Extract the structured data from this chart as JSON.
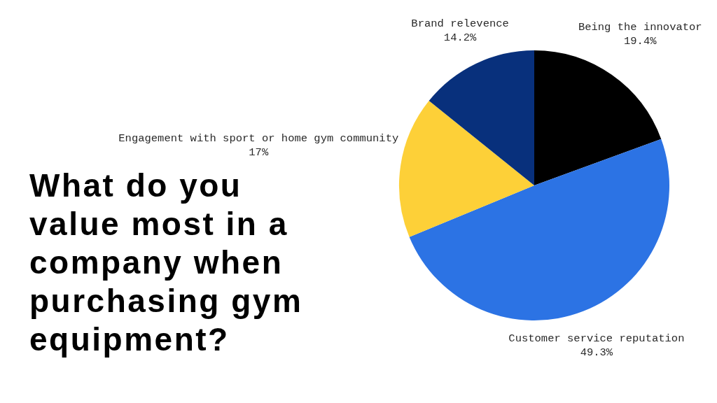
{
  "chart_data": {
    "type": "pie",
    "title": "What do you value most in a company when purchasing gym equipment?",
    "categories": [
      "Being the innovator",
      "Customer service reputation",
      "Engagement with sport or home gym community",
      "Brand relevence"
    ],
    "values": [
      19.4,
      49.3,
      17,
      14.2
    ],
    "colors": [
      "#000000",
      "#2c73e4",
      "#fdd038",
      "#08307c"
    ],
    "value_labels": [
      "19.4%",
      "49.3%",
      "17%",
      "14.2%"
    ]
  }
}
